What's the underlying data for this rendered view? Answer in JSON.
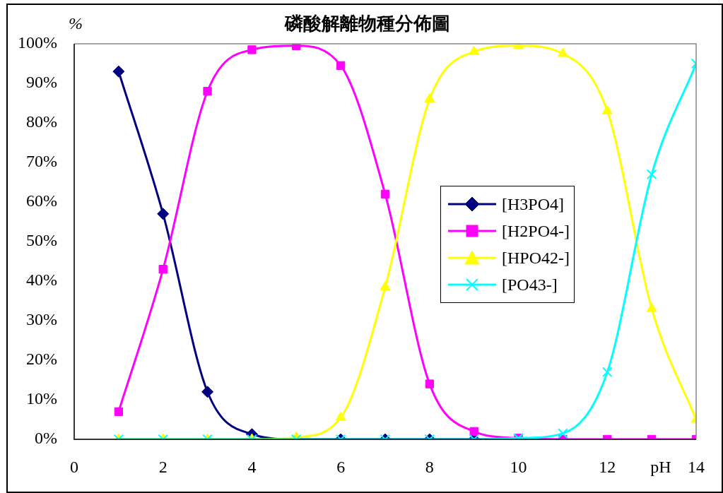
{
  "chart_data": {
    "type": "line",
    "title": "磷酸解離物種分佈圖",
    "xlabel": "pH",
    "ylabel": "%",
    "x": [
      1,
      2,
      3,
      4,
      5,
      6,
      7,
      8,
      9,
      10,
      11,
      12,
      13,
      14
    ],
    "xlim": [
      0,
      14
    ],
    "xticks": [
      0,
      2,
      4,
      6,
      8,
      10,
      12,
      14
    ],
    "ylim": [
      0,
      100
    ],
    "yticks": [
      {
        "value": 0,
        "label": "0%"
      },
      {
        "value": 10,
        "label": "10%"
      },
      {
        "value": 20,
        "label": "20%"
      },
      {
        "value": 30,
        "label": "30%"
      },
      {
        "value": 40,
        "label": "40%"
      },
      {
        "value": 50,
        "label": "50%"
      },
      {
        "value": 60,
        "label": "60%"
      },
      {
        "value": 70,
        "label": "70%"
      },
      {
        "value": 80,
        "label": "80%"
      },
      {
        "value": 90,
        "label": "90%"
      },
      {
        "value": 100,
        "label": "100%"
      }
    ],
    "grid": false,
    "legend": "right",
    "line_style": "solid",
    "series": [
      {
        "name": "[H3PO4]",
        "color": "#000080",
        "marker": "diamond",
        "values": [
          93,
          57,
          12,
          1.3,
          0,
          0,
          0,
          0,
          0,
          0,
          null,
          null,
          null,
          null
        ]
      },
      {
        "name": "[H2PO4-]",
        "color": "#ff00ff",
        "marker": "square",
        "values": [
          7,
          43,
          88,
          98.5,
          99.5,
          94.5,
          62,
          14,
          2,
          0.3,
          0,
          0,
          0,
          0
        ]
      },
      {
        "name": "[HPO42-]",
        "color": "#ffff00",
        "marker": "triangle",
        "values": [
          0,
          0,
          0,
          0,
          0.5,
          5.5,
          38.5,
          86,
          98,
          99.5,
          97.5,
          83,
          33,
          5
        ]
      },
      {
        "name": "[PO43-]",
        "color": "#00ffff",
        "marker": "cross",
        "values": [
          0,
          0,
          0,
          0,
          0,
          0,
          0,
          0,
          0,
          0.3,
          1.5,
          17,
          67,
          95
        ]
      }
    ]
  }
}
